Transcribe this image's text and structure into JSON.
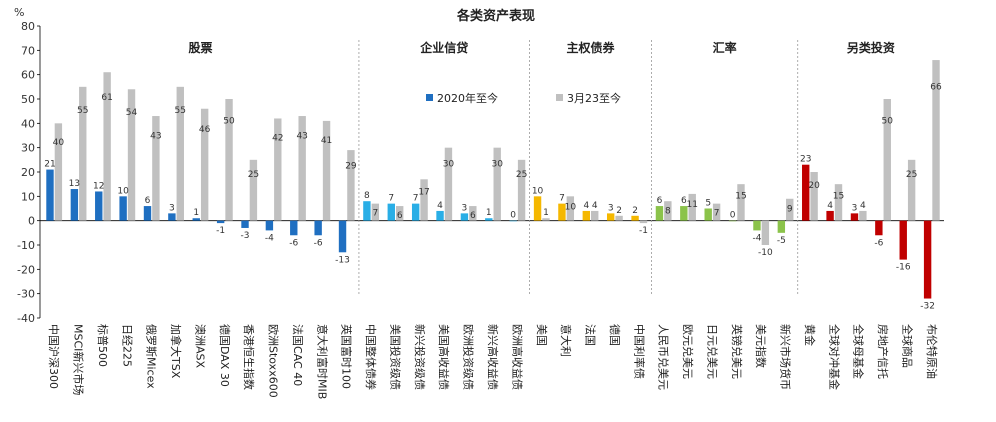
{
  "chart_data": {
    "type": "bar",
    "title": "各类资产表现",
    "unit": "%",
    "ylim": [
      -40,
      80
    ],
    "yticks": [
      -40,
      -30,
      -20,
      -10,
      0,
      10,
      20,
      30,
      40,
      50,
      60,
      70,
      80
    ],
    "grid": false,
    "legend_position": "center",
    "groups": [
      {
        "name": "股票",
        "color_2020": "#1f6fc1",
        "color_mar": "#c0c0c0",
        "categories": [
          "中国沪深300",
          "MSCI新兴市场",
          "标普500",
          "日经225",
          "俄罗斯Micex",
          "加拿大TSX",
          "澳洲ASX",
          "德国DAX 30",
          "香港恒生指数",
          "欧洲Stoxx600",
          "法国CAC 40",
          "意大利富时MIB",
          "英国富时100"
        ]
      },
      {
        "name": "企业信贷",
        "color_2020": "#29aee6",
        "color_mar": "#c0c0c0",
        "categories": [
          "中国整体债券",
          "美国投资级债",
          "新兴投资级债",
          "美国高收益债",
          "欧洲投资级债",
          "新兴高收益债",
          "欧洲高收益债"
        ]
      },
      {
        "name": "主权债券",
        "color_2020": "#f5b800",
        "color_mar": "#c0c0c0",
        "categories": [
          "美国",
          "意大利",
          "法国",
          "德国",
          "中国利率债"
        ]
      },
      {
        "name": "汇率",
        "color_2020": "#8bc34a",
        "color_mar": "#c0c0c0",
        "categories": [
          "人民币兑美元",
          "欧元兑美元",
          "日元兑美元",
          "英镑兑美元",
          "美元指数",
          "新兴市场货币"
        ]
      },
      {
        "name": "另类投资",
        "color_2020": "#c00000",
        "color_mar": "#c0c0c0",
        "categories": [
          "黄金",
          "全球对冲基金",
          "全球母基金",
          "房地产信托",
          "全球商品",
          "布伦特原油"
        ]
      }
    ],
    "series": [
      {
        "name": "2020年至今",
        "label_color": "#1f6fc1",
        "values": [
          21,
          13,
          12,
          10,
          6,
          3,
          1,
          -1,
          -3,
          -4,
          -6,
          -6,
          -13,
          8,
          7,
          7,
          4,
          3,
          1,
          0,
          10,
          7,
          4,
          3,
          2,
          6,
          6,
          5,
          0,
          -4,
          -5,
          23,
          4,
          3,
          -6,
          -16,
          -32
        ]
      },
      {
        "name": "3月23至今",
        "label_color": "#b0b0b0",
        "values": [
          40,
          55,
          61,
          54,
          43,
          55,
          46,
          50,
          25,
          42,
          43,
          41,
          29,
          7,
          6,
          17,
          30,
          6,
          30,
          25,
          1,
          10,
          4,
          2,
          -1,
          8,
          11,
          7,
          15,
          -10,
          9,
          20,
          15,
          4,
          50,
          25,
          66
        ]
      }
    ]
  }
}
